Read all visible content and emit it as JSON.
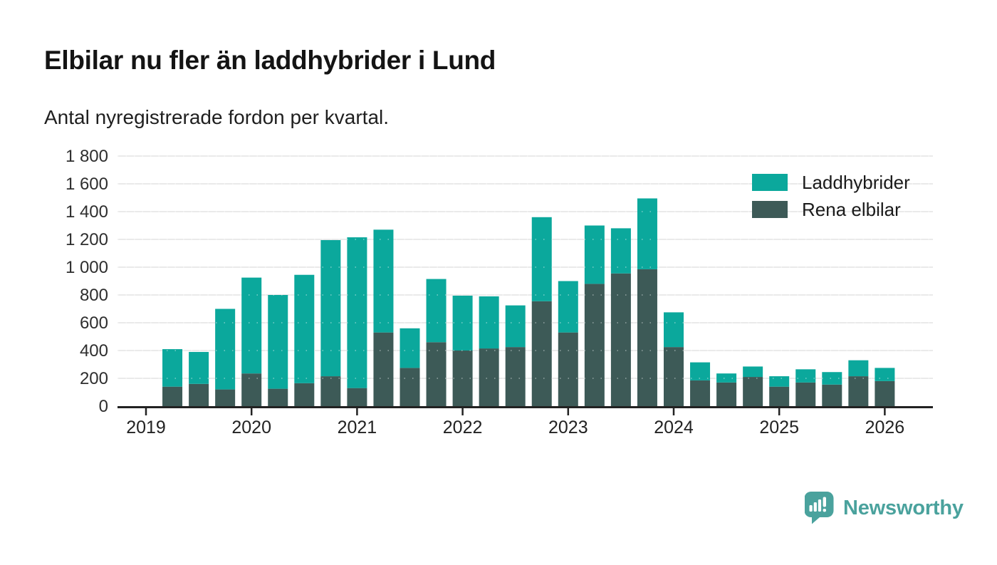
{
  "header": {
    "title": "Elbilar nu fler än laddhybrider i Lund",
    "subtitle": "Antal nyregistrerade fordon per kvartal."
  },
  "legend": {
    "items": [
      {
        "label": "Laddhybrider",
        "color": "#0ba89c"
      },
      {
        "label": "Rena elbilar",
        "color": "#3d5a57"
      }
    ]
  },
  "footer": {
    "brand": "Newsworthy",
    "brand_color": "#4aa29d",
    "logo_icon": "bar-chart-speech-bubble-icon"
  },
  "chart_data": {
    "type": "bar",
    "stacked": true,
    "title": "Elbilar nu fler än laddhybrider i Lund",
    "subtitle": "Antal nyregistrerade fordon per kvartal.",
    "xlabel": "",
    "ylabel": "",
    "categories": [
      "2019-Q2",
      "2019-Q3",
      "2019-Q4",
      "2020-Q1",
      "2020-Q2",
      "2020-Q3",
      "2020-Q4",
      "2021-Q1",
      "2021-Q2",
      "2021-Q3",
      "2021-Q4",
      "2022-Q1",
      "2022-Q2",
      "2022-Q3",
      "2022-Q4",
      "2023-Q1",
      "2023-Q2",
      "2023-Q3",
      "2023-Q4",
      "2024-Q1",
      "2024-Q2",
      "2024-Q3",
      "2024-Q4",
      "2025-Q1",
      "2025-Q2",
      "2025-Q3",
      "2025-Q4",
      "2026-Q1"
    ],
    "series": [
      {
        "name": "Rena elbilar",
        "color": "#3d5a57",
        "values": [
          140,
          160,
          120,
          235,
          125,
          165,
          215,
          130,
          530,
          275,
          460,
          400,
          415,
          425,
          755,
          530,
          880,
          955,
          985,
          425,
          185,
          170,
          210,
          140,
          170,
          155,
          215,
          180
        ]
      },
      {
        "name": "Laddhybrider",
        "color": "#0ba89c",
        "values": [
          270,
          230,
          580,
          690,
          675,
          780,
          980,
          1085,
          740,
          285,
          455,
          395,
          375,
          300,
          605,
          370,
          420,
          325,
          510,
          250,
          130,
          65,
          75,
          75,
          95,
          90,
          115,
          95
        ]
      }
    ],
    "ylim": [
      0,
      1800
    ],
    "ytick_step": 200,
    "ytick_labels": [
      "0",
      "200",
      "400",
      "600",
      "800",
      "1 000",
      "1 200",
      "1 400",
      "1 600",
      "1 800"
    ],
    "year_labels": [
      "2019",
      "2020",
      "2021",
      "2022",
      "2023",
      "2024",
      "2025",
      "2026"
    ],
    "grid": true,
    "legend_position": "top-right"
  }
}
